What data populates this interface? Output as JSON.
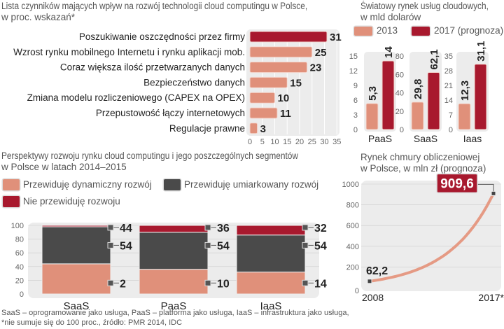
{
  "colors": {
    "pink": "#e0907a",
    "red": "#a8192e",
    "dark": "#4a4a4a",
    "bg": "#ececec"
  },
  "chart_data": [
    {
      "type": "bar",
      "orientation": "horizontal",
      "title": "Lista czynników mających wpływ na rozwój technologii cloud computingu w Polsce,",
      "subtitle": "w proc. wskazań*",
      "categories": [
        "Poszukiwanie oszczędności przez firmy",
        "Wzrost rynku mobilnego Internetu i rynku aplikacji mob.",
        "Coraz większa ilość przetwarzanych danych",
        "Bezpieczeństwo danych",
        "Zmiana modelu rozliczeniowego (CAPEX na OPEX)",
        "Przepustowość łączy internetowych",
        "Regulacje prawne"
      ],
      "values": [
        31,
        25,
        23,
        15,
        10,
        11,
        3
      ],
      "labels": [
        "31",
        "25",
        "23",
        "15",
        "10",
        "11",
        "3"
      ],
      "highlight_index": 0,
      "xlim": [
        0,
        35
      ],
      "xticks": [
        "0",
        "5",
        "10",
        "15",
        "20",
        "25",
        "30",
        "35"
      ]
    },
    {
      "type": "bar",
      "title": "Światowy rynek usług cloudowych,",
      "subtitle": "w mld dolarów",
      "legend": [
        "2013",
        "2017 (prognoza)"
      ],
      "panels": [
        {
          "category": "PaaS",
          "values": [
            5.3,
            14
          ],
          "labels": [
            "5,3",
            "14"
          ],
          "ylim": [
            0,
            15
          ],
          "yticks": [
            "0",
            "3",
            "6",
            "9",
            "12",
            "15"
          ]
        },
        {
          "category": "SaaS",
          "values": [
            29.8,
            62.1
          ],
          "labels": [
            "29,8",
            "62,1"
          ],
          "ylim": [
            0,
            80
          ],
          "yticks": [
            "0",
            "20",
            "40",
            "60",
            "80"
          ]
        },
        {
          "category": "Iaas",
          "values": [
            12.3,
            31.1
          ],
          "labels": [
            "12,3",
            "31,1"
          ],
          "ylim": [
            0,
            35
          ],
          "yticks": [
            "0",
            "7",
            "14",
            "21",
            "28",
            "35"
          ]
        }
      ]
    },
    {
      "type": "bar",
      "stacked": true,
      "title": "Perspektywy rozwoju rynku cloud computingu i jego poszczególnych segmentów",
      "subtitle": "w Polsce w latach 2014–2015",
      "legend": [
        "Przewiduję dynamiczny rozwój",
        "Przewiduję umiarkowany rozwój",
        "Nie przewiduję rozwoju"
      ],
      "categories": [
        "SaaS",
        "PaaS",
        "IaaS"
      ],
      "series": [
        {
          "name": "Przewiduję dynamiczny rozwój",
          "values": [
            44,
            36,
            32
          ]
        },
        {
          "name": "Przewiduję umiarkowany rozwój",
          "values": [
            54,
            54,
            54
          ]
        },
        {
          "name": "Nie przewiduję rozwoju",
          "values": [
            2,
            10,
            14
          ]
        }
      ],
      "ylim": [
        0,
        100
      ],
      "yticks": [
        "0",
        "20",
        "40",
        "60",
        "80",
        "100"
      ],
      "footnote": [
        "SaaS – oprogramowanie jako usługa, PaaS – platforma jako usługa, IaaS – infrastruktura jako usługa,",
        "*nie sumuje się do 100 proc., źródło: PMR 2014, IDC"
      ]
    },
    {
      "type": "line",
      "title": "Rynek chmury obliczeniowej",
      "subtitle": "w Polsce, w mln zł (prognoza)",
      "x": [
        2008,
        2017
      ],
      "y": [
        62.2,
        909.6
      ],
      "labels": [
        "62,2",
        "909,6"
      ],
      "xticks": [
        "2008",
        "2017*"
      ],
      "ylim": [
        0,
        1000
      ],
      "yticks": [
        "0",
        "200",
        "400",
        "600",
        "800",
        "1000"
      ]
    }
  ]
}
